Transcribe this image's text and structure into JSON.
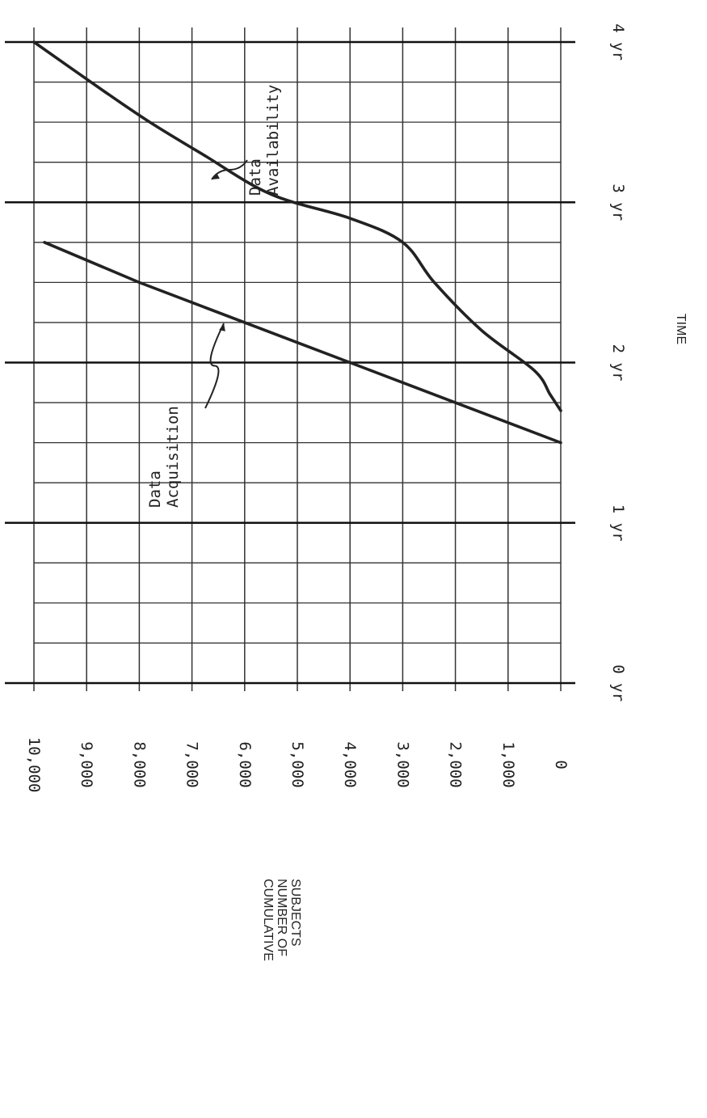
{
  "chart_data": {
    "type": "line",
    "xlabel": "TIME",
    "ylabel_lines": [
      "CUMULATIVE",
      "NUMBER OF",
      "SUBJECTS"
    ],
    "x_ticks": [
      0,
      1,
      2,
      3,
      4
    ],
    "x_tick_labels": [
      "0 yr",
      "1 yr",
      "2 yr",
      "3 yr",
      "4 yr"
    ],
    "y_ticks": [
      0,
      1000,
      2000,
      3000,
      4000,
      5000,
      6000,
      7000,
      8000,
      9000,
      10000
    ],
    "y_tick_labels": [
      "0",
      "1,000",
      "2,000",
      "3,000",
      "4,000",
      "5,000",
      "6,000",
      "7,000",
      "8,000",
      "9,000",
      "10,000"
    ],
    "xlim": [
      0,
      4
    ],
    "ylim": [
      0,
      10000
    ],
    "grid": true,
    "series": [
      {
        "name": "Data Acquisition",
        "label_lines": [
          "Data",
          "Acquisition"
        ],
        "x": [
          1.5,
          2.0,
          2.5,
          2.75
        ],
        "y": [
          0,
          4000,
          8000,
          9800
        ]
      },
      {
        "name": "Data Availability",
        "label_lines": [
          "Data",
          "Availability"
        ],
        "x": [
          1.7,
          1.8,
          1.95,
          2.2,
          2.5,
          2.75,
          2.9,
          3.05,
          3.3,
          3.5,
          3.7,
          4.0
        ],
        "y": [
          0,
          200,
          500,
          1500,
          2400,
          3000,
          4000,
          5500,
          6800,
          7800,
          8700,
          10000
        ]
      }
    ]
  }
}
